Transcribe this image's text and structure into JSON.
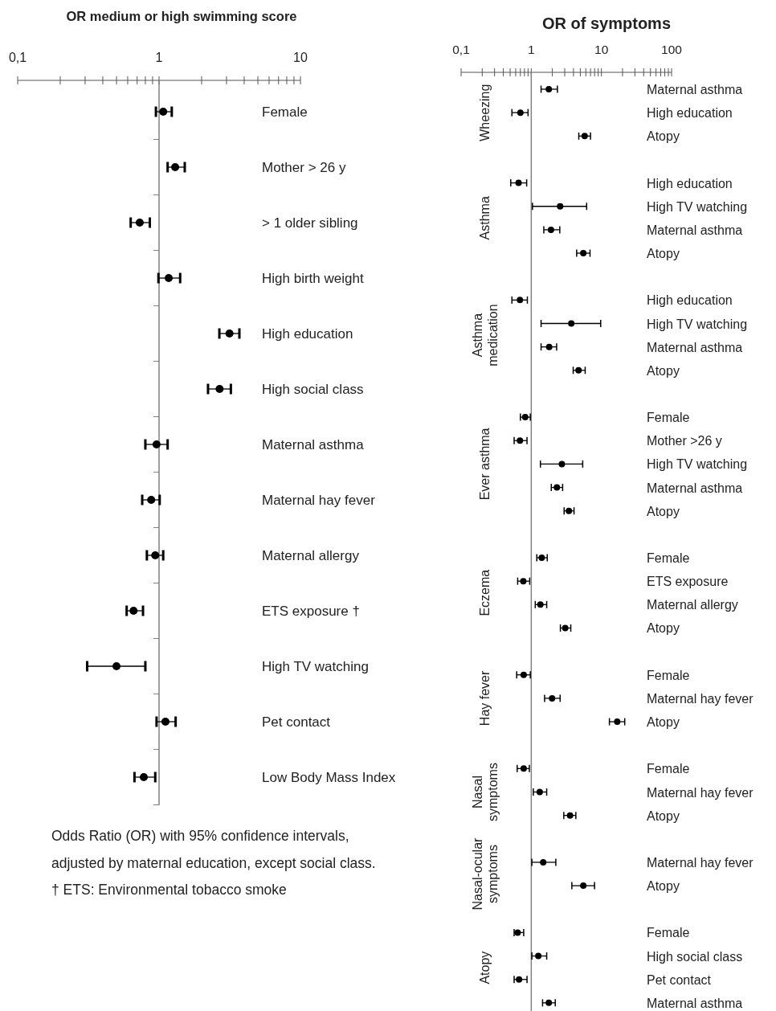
{
  "chart_data": [
    {
      "type": "scatter",
      "orientation": "horizontal",
      "log": "x",
      "marker": "circle",
      "color": "#000000",
      "title": "OR medium or high swimming score",
      "categories": [
        "Female",
        "Mother > 26 y",
        "> 1 older sibling",
        "High birth weight",
        "High education",
        "High social class",
        "Maternal asthma",
        "Maternal hay fever",
        "Maternal allergy",
        "ETS exposure †",
        "High TV watching",
        "Pet contact",
        "Low Body Mass Index"
      ],
      "values": [
        1.07,
        1.3,
        0.73,
        1.17,
        3.15,
        2.68,
        0.96,
        0.88,
        0.94,
        0.66,
        0.5,
        1.11,
        0.78
      ],
      "errors": [
        [
          0.95,
          1.23
        ],
        [
          1.15,
          1.52
        ],
        [
          0.63,
          0.86
        ],
        [
          0.99,
          1.41
        ],
        [
          2.67,
          3.7
        ],
        [
          2.22,
          3.22
        ],
        [
          0.8,
          1.15
        ],
        [
          0.76,
          1.01
        ],
        [
          0.82,
          1.07
        ],
        [
          0.59,
          0.77
        ],
        [
          0.31,
          0.8
        ],
        [
          0.96,
          1.31
        ],
        [
          0.67,
          0.94
        ]
      ],
      "xlim": [
        0.1,
        10
      ],
      "xticks": [
        {
          "value": 0.1,
          "label": "0,1"
        },
        {
          "value": 0.2,
          "label": null
        },
        {
          "value": 0.3,
          "label": null
        },
        {
          "value": 0.4,
          "label": null
        },
        {
          "value": 0.5,
          "label": null
        },
        {
          "value": 0.6,
          "label": null
        },
        {
          "value": 0.7,
          "label": null
        },
        {
          "value": 0.8,
          "label": null
        },
        {
          "value": 0.9,
          "label": null
        },
        1,
        {
          "value": 2,
          "label": null
        },
        {
          "value": 3,
          "label": null
        },
        {
          "value": 4,
          "label": null
        },
        {
          "value": 5,
          "label": null
        },
        {
          "value": 6,
          "label": null
        },
        {
          "value": 7,
          "label": null
        },
        {
          "value": 8,
          "label": null
        },
        {
          "value": 9,
          "label": null
        },
        10
      ],
      "ref_lines": [
        {
          "axis": "x",
          "value": 1,
          "color": "#808080"
        }
      ],
      "annotations": [
        "Odds Ratio (OR) with 95% confidence intervals, adjusted by maternal education, except social class.",
        "† ETS: Environmental tobacco smoke"
      ]
    },
    {
      "type": "scatter",
      "orientation": "horizontal",
      "log": "x",
      "marker": "circle",
      "color": "#000000",
      "title": "OR of symptoms",
      "categories": [
        "Maternal asthma",
        "High education",
        "Atopy",
        null,
        "High education",
        "High TV watching",
        "Maternal asthma",
        "Atopy",
        null,
        "High education",
        "High TV watching",
        "Maternal asthma",
        "Atopy",
        null,
        "Female",
        "Mother >26 y",
        "High TV watching",
        "Maternal asthma",
        "Atopy",
        null,
        "Female",
        "ETS exposure",
        "Maternal allergy",
        "Atopy",
        null,
        "Female",
        "Maternal hay fever",
        "Atopy",
        null,
        "Female",
        "Maternal hay fever",
        "Atopy",
        null,
        "Maternal hay fever",
        "Atopy",
        null,
        "Female",
        "High social class",
        "Pet contact",
        "Maternal asthma"
      ],
      "values": [
        1.78,
        0.7,
        5.77,
        null,
        0.66,
        2.58,
        1.91,
        5.52,
        null,
        0.69,
        3.72,
        1.8,
        4.72,
        null,
        0.82,
        0.69,
        2.73,
        2.32,
        3.44,
        null,
        1.41,
        0.77,
        1.35,
        3.05,
        null,
        0.78,
        1.98,
        16.8,
        null,
        0.78,
        1.32,
        3.57,
        null,
        1.48,
        5.52,
        null,
        0.64,
        1.26,
        0.67,
        1.78
      ],
      "errors": [
        [
          1.38,
          2.36
        ],
        [
          0.53,
          0.9
        ],
        [
          4.76,
          6.99
        ],
        null,
        [
          0.51,
          0.86
        ],
        [
          1.04,
          6.16
        ],
        [
          1.51,
          2.55
        ],
        [
          4.44,
          6.88
        ],
        null,
        [
          0.53,
          0.88
        ],
        [
          1.38,
          9.76
        ],
        [
          1.38,
          2.3
        ],
        [
          3.96,
          5.87
        ],
        null,
        [
          0.7,
          0.97
        ],
        [
          0.57,
          0.87
        ],
        [
          1.35,
          5.41
        ],
        [
          1.93,
          2.8
        ],
        [
          2.94,
          4.07
        ],
        null,
        [
          1.2,
          1.69
        ],
        [
          0.64,
          0.95
        ],
        [
          1.14,
          1.66
        ],
        [
          2.6,
          3.66
        ],
        null,
        [
          0.62,
          0.97
        ],
        [
          1.55,
          2.58
        ],
        [
          13.0,
          21.5
        ],
        null,
        [
          0.63,
          0.94
        ],
        [
          1.07,
          1.66
        ],
        [
          2.91,
          4.32
        ],
        null,
        [
          1.02,
          2.24
        ],
        [
          3.79,
          7.98
        ],
        null,
        [
          0.57,
          0.78
        ],
        [
          1.02,
          1.66
        ],
        [
          0.57,
          0.87
        ],
        [
          1.45,
          2.2
        ]
      ],
      "xlim": [
        0.1,
        100
      ],
      "xticks": [
        {
          "value": 0.1,
          "label": "0,1"
        },
        {
          "value": 0.2,
          "label": null
        },
        {
          "value": 0.3,
          "label": null
        },
        {
          "value": 0.4,
          "label": null
        },
        {
          "value": 0.5,
          "label": null
        },
        {
          "value": 0.6,
          "label": null
        },
        {
          "value": 0.7,
          "label": null
        },
        {
          "value": 0.8,
          "label": null
        },
        {
          "value": 0.9,
          "label": null
        },
        1,
        {
          "value": 2,
          "label": null
        },
        {
          "value": 3,
          "label": null
        },
        {
          "value": 4,
          "label": null
        },
        {
          "value": 5,
          "label": null
        },
        {
          "value": 6,
          "label": null
        },
        {
          "value": 7,
          "label": null
        },
        {
          "value": 8,
          "label": null
        },
        {
          "value": 9,
          "label": null
        },
        10,
        {
          "value": 20,
          "label": null
        },
        {
          "value": 30,
          "label": null
        },
        {
          "value": 40,
          "label": null
        },
        {
          "value": 50,
          "label": null
        },
        {
          "value": 60,
          "label": null
        },
        {
          "value": 70,
          "label": null
        },
        {
          "value": 80,
          "label": null
        },
        {
          "value": 90,
          "label": null
        },
        100
      ],
      "ref_lines": [
        {
          "axis": "x",
          "value": 1,
          "color": "#808080"
        }
      ],
      "annotations": [
        "Wheezing",
        "Asthma",
        "Asthma medication",
        "Ever asthma",
        "Eczema",
        "Hay fever",
        "Nasal symptoms",
        "Nasal-ocular symptoms",
        "Atopy"
      ]
    }
  ]
}
